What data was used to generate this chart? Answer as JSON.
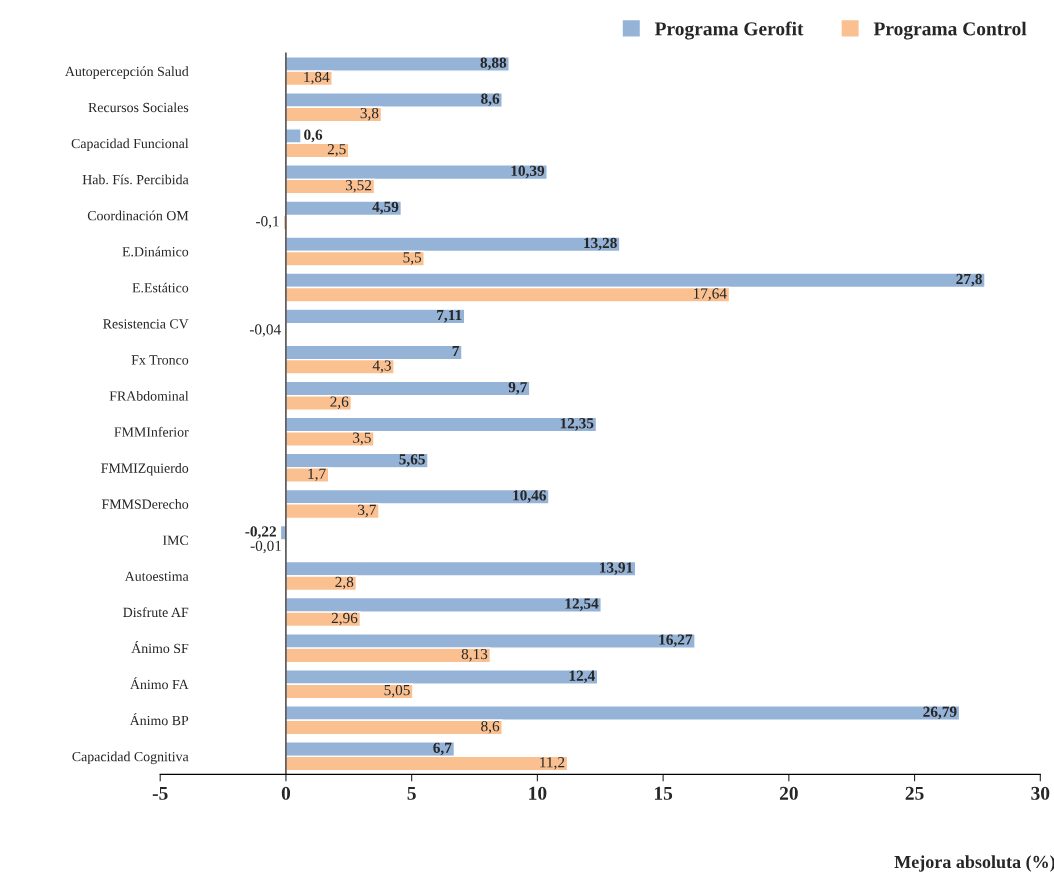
{
  "chart_data": {
    "type": "bar",
    "orientation": "horizontal",
    "categories": [
      "Autopercepción Salud",
      "Recursos Sociales",
      "Capacidad Funcional",
      "Hab. Fís. Percibida",
      "Coordinación OM",
      "E.Dinámico",
      "E.Estático",
      "Resistencia CV",
      "Fx Tronco",
      "FRAbdominal",
      "FMMInferior",
      "FMMIZquierdo",
      "FMMSDerecho",
      "IMC",
      "Autoestima",
      "Disfrute AF",
      "Ánimo SF",
      "Ánimo FA",
      "Ánimo BP",
      "Capacidad Cognitiva"
    ],
    "series": [
      {
        "name": "Programa Gerofit",
        "color": "#95b3d7",
        "values": [
          8.88,
          8.6,
          0.6,
          10.39,
          4.59,
          13.28,
          27.8,
          7.11,
          7,
          9.7,
          12.35,
          5.65,
          10.46,
          -0.22,
          13.91,
          12.54,
          16.27,
          12.4,
          26.79,
          6.7
        ],
        "value_labels": [
          "8,88",
          "8,6",
          "0,6",
          "10,39",
          "4,59",
          "13,28",
          "27,8",
          "7,11",
          "7",
          "9,7",
          "12,35",
          "5,65",
          "10,46",
          "-0,22",
          "13,91",
          "12,54",
          "16,27",
          "12,4",
          "26,79",
          "6,7"
        ]
      },
      {
        "name": "Programa Control",
        "color": "#fac090",
        "values": [
          1.84,
          3.8,
          2.5,
          3.52,
          -0.1,
          5.5,
          17.64,
          -0.04,
          4.3,
          2.6,
          3.5,
          1.7,
          3.7,
          -0.01,
          2.8,
          2.96,
          8.13,
          5.05,
          8.6,
          11.2
        ],
        "value_labels": [
          "1,84",
          "3,8",
          "2,5",
          "3,52",
          "-0,1",
          "5,5",
          "17,64",
          "-0,04",
          "4,3",
          "2,6",
          "3,5",
          "1,7",
          "3,7",
          "-0,01",
          "2,8",
          "2,96",
          "8,13",
          "5,05",
          "8,6",
          "11,2"
        ]
      }
    ],
    "xlim": [
      -5,
      30
    ],
    "xticks": [
      -5,
      0,
      5,
      10,
      15,
      20,
      25,
      30
    ],
    "xlabel": "Mejora absoluta (%)",
    "legend": "top right"
  }
}
